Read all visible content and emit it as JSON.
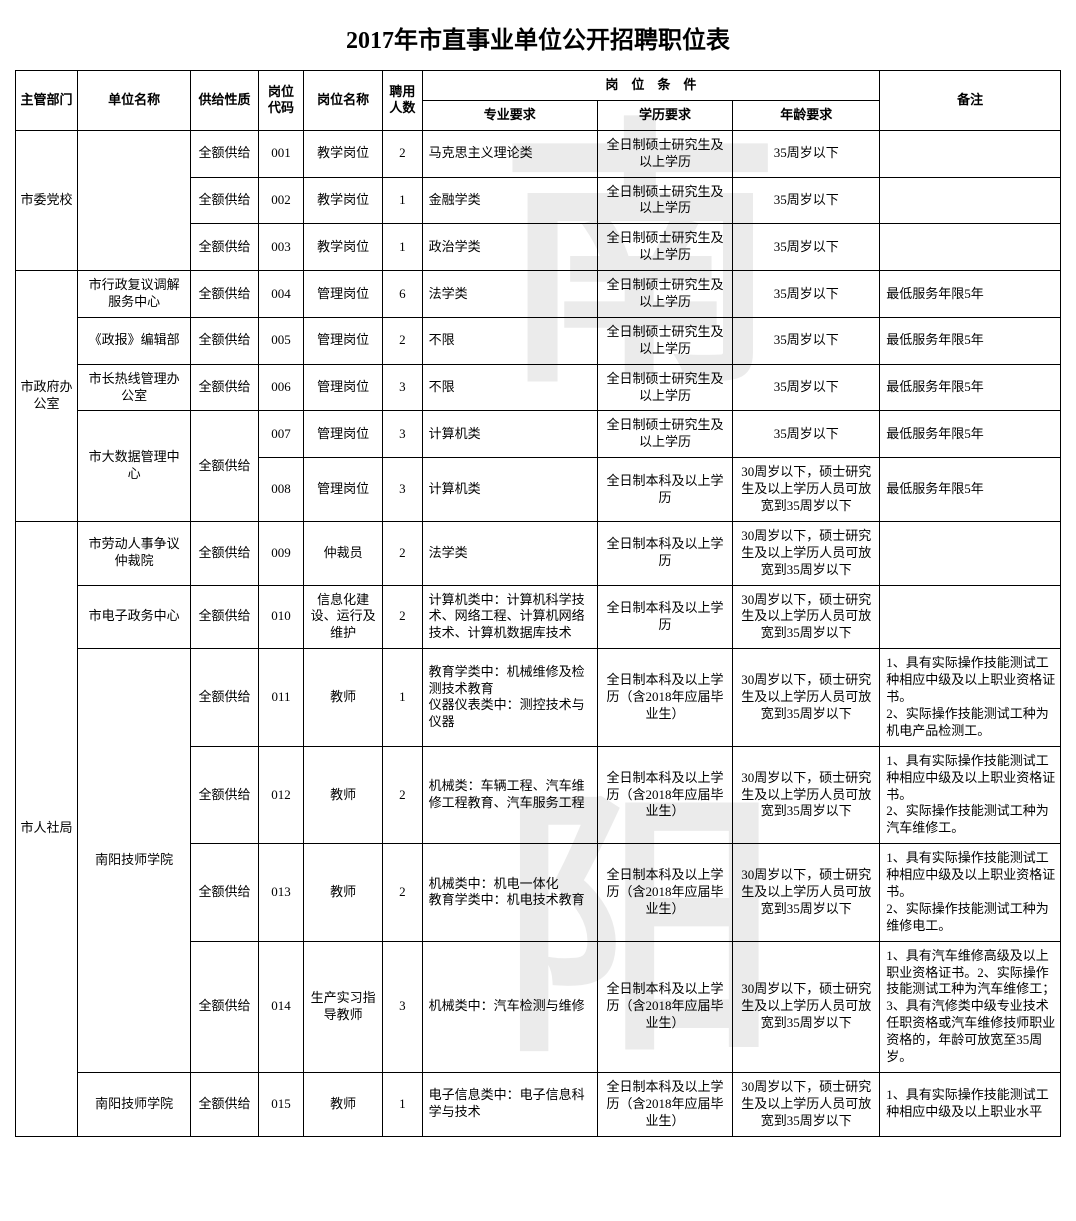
{
  "title": "2017年市直事业单位公开招聘职位表",
  "headers": {
    "dept": "主管部门",
    "unit": "单位名称",
    "supply": "供给性质",
    "code": "岗位代码",
    "post": "岗位名称",
    "num": "聘用人数",
    "conditions": "岗　位　条　件",
    "major": "专业要求",
    "edu": "学历要求",
    "age": "年龄要求",
    "remark": "备注"
  },
  "depts": [
    {
      "name": "市委党校",
      "rows": [
        {
          "unit": "",
          "unitspan": 3,
          "supply": "全额供给",
          "code": "001",
          "post": "教学岗位",
          "num": "2",
          "major": "马克思主义理论类",
          "edu": "全日制硕士研究生及以上学历",
          "age": "35周岁以下",
          "remark": ""
        },
        {
          "supply": "全额供给",
          "code": "002",
          "post": "教学岗位",
          "num": "1",
          "major": "金融学类",
          "edu": "全日制硕士研究生及以上学历",
          "age": "35周岁以下",
          "remark": ""
        },
        {
          "supply": "全额供给",
          "code": "003",
          "post": "教学岗位",
          "num": "1",
          "major": "政治学类",
          "edu": "全日制硕士研究生及以上学历",
          "age": "35周岁以下",
          "remark": ""
        }
      ]
    },
    {
      "name": "市政府办公室",
      "rows": [
        {
          "unit": "市行政复议调解服务中心",
          "unitspan": 1,
          "supply": "全额供给",
          "code": "004",
          "post": "管理岗位",
          "num": "6",
          "major": "法学类",
          "edu": "全日制硕士研究生及以上学历",
          "age": "35周岁以下",
          "remark": "最低服务年限5年"
        },
        {
          "unit": "《政报》编辑部",
          "unitspan": 1,
          "supply": "全额供给",
          "code": "005",
          "post": "管理岗位",
          "num": "2",
          "major": "不限",
          "edu": "全日制硕士研究生及以上学历",
          "age": "35周岁以下",
          "remark": "最低服务年限5年"
        },
        {
          "unit": "市长热线管理办公室",
          "unitspan": 1,
          "supply": "全额供给",
          "code": "006",
          "post": "管理岗位",
          "num": "3",
          "major": "不限",
          "edu": "全日制硕士研究生及以上学历",
          "age": "35周岁以下",
          "remark": "最低服务年限5年"
        },
        {
          "unit": "市大数据管理中心",
          "unitspan": 2,
          "supply": "全额供给",
          "supplyspan": 2,
          "code": "007",
          "post": "管理岗位",
          "num": "3",
          "major": "计算机类",
          "edu": "全日制硕士研究生及以上学历",
          "age": "35周岁以下",
          "remark": "最低服务年限5年"
        },
        {
          "code": "008",
          "post": "管理岗位",
          "num": "3",
          "major": "计算机类",
          "edu": "全日制本科及以上学历",
          "age": "30周岁以下，硕士研究生及以上学历人员可放宽到35周岁以下",
          "remark": "最低服务年限5年"
        }
      ]
    },
    {
      "name": "市人社局",
      "rows": [
        {
          "unit": "市劳动人事争议仲裁院",
          "unitspan": 1,
          "supply": "全额供给",
          "code": "009",
          "post": "仲裁员",
          "num": "2",
          "major": "法学类",
          "edu": "全日制本科及以上学历",
          "age": "30周岁以下，硕士研究生及以上学历人员可放宽到35周岁以下",
          "remark": ""
        },
        {
          "unit": "市电子政务中心",
          "unitspan": 1,
          "supply": "全额供给",
          "code": "010",
          "post": "信息化建设、运行及维护",
          "num": "2",
          "major": "计算机类中：计算机科学技术、网络工程、计算机网络技术、计算机数据库技术",
          "edu": "全日制本科及以上学历",
          "age": "30周岁以下，硕士研究生及以上学历人员可放宽到35周岁以下",
          "remark": ""
        },
        {
          "unit": "南阳技师学院",
          "unitspan": 4,
          "supply": "全额供给",
          "code": "011",
          "post": "教师",
          "num": "1",
          "major": "教育学类中：机械维修及检测技术教育\n仪器仪表类中：测控技术与仪器",
          "edu": "全日制本科及以上学历（含2018年应届毕业生）",
          "age": "30周岁以下，硕士研究生及以上学历人员可放宽到35周岁以下",
          "remark": "1、具有实际操作技能测试工种相应中级及以上职业资格证书。\n2、实际操作技能测试工种为机电产品检测工。"
        },
        {
          "supply": "全额供给",
          "code": "012",
          "post": "教师",
          "num": "2",
          "major": "机械类：车辆工程、汽车维修工程教育、汽车服务工程",
          "edu": "全日制本科及以上学历（含2018年应届毕业生）",
          "age": "30周岁以下，硕士研究生及以上学历人员可放宽到35周岁以下",
          "remark": "1、具有实际操作技能测试工种相应中级及以上职业资格证书。\n2、实际操作技能测试工种为汽车维修工。"
        },
        {
          "supply": "全额供给",
          "code": "013",
          "post": "教师",
          "num": "2",
          "major": "机械类中：机电一体化\n教育学类中：机电技术教育",
          "edu": "全日制本科及以上学历（含2018年应届毕业生）",
          "age": "30周岁以下，硕士研究生及以上学历人员可放宽到35周岁以下",
          "remark": "1、具有实际操作技能测试工种相应中级及以上职业资格证书。\n2、实际操作技能测试工种为维修电工。"
        },
        {
          "supply": "全额供给",
          "code": "014",
          "post": "生产实习指导教师",
          "num": "3",
          "major": "机械类中：汽车检测与维修",
          "edu": "全日制本科及以上学历（含2018年应届毕业生）",
          "age": "30周岁以下，硕士研究生及以上学历人员可放宽到35周岁以下",
          "remark": "1、具有汽车维修高级及以上职业资格证书。2、实际操作技能测试工种为汽车维修工；3、具有汽修类中级专业技术任职资格或汽车维修技师职业资格的，年龄可放宽至35周岁。"
        },
        {
          "unit": "南阳技师学院",
          "unitspan": 1,
          "supply": "全额供给",
          "code": "015",
          "post": "教师",
          "num": "1",
          "major": "电子信息类中：电子信息科学与技术",
          "edu": "全日制本科及以上学历（含2018年应届毕业生）",
          "age": "30周岁以下，硕士研究生及以上学历人员可放宽到35周岁以下",
          "remark": "1、具有实际操作技能测试工种相应中级及以上职业水平"
        }
      ]
    }
  ]
}
